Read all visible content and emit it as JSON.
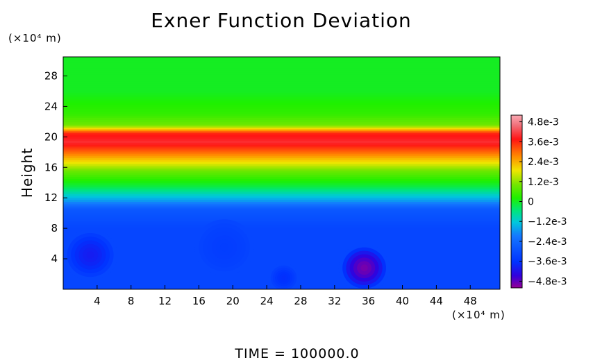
{
  "chart_data": {
    "type": "heatmap",
    "title": "Exner Function Deviation",
    "xlabel": "",
    "ylabel": "Height",
    "x_unit": "(×10⁴ m)",
    "y_unit": "(×10⁴ m)",
    "xlim": [
      0,
      51.5
    ],
    "ylim": [
      0,
      30.5
    ],
    "xticks": [
      4,
      8,
      12,
      16,
      20,
      24,
      28,
      32,
      36,
      40,
      44,
      48
    ],
    "yticks": [
      4,
      8,
      12,
      16,
      20,
      24,
      28
    ],
    "colorbar": {
      "min": -0.0052,
      "max": 0.0052,
      "ticks": [
        {
          "value": 0.0048,
          "label": "4.8e-3"
        },
        {
          "value": 0.0036,
          "label": "3.6e-3"
        },
        {
          "value": 0.0024,
          "label": "2.4e-3"
        },
        {
          "value": 0.0012,
          "label": "1.2e-3"
        },
        {
          "value": 0,
          "label": "0"
        },
        {
          "value": -0.0012,
          "label": "−1.2e-3"
        },
        {
          "value": -0.0024,
          "label": "−2.4e-3"
        },
        {
          "value": -0.0036,
          "label": "−3.6e-3"
        },
        {
          "value": -0.0048,
          "label": "−4.8e-3"
        }
      ]
    },
    "vertical_profile": [
      {
        "height": 0,
        "value": -0.0032
      },
      {
        "height": 8,
        "value": -0.0032
      },
      {
        "height": 10.5,
        "value": -0.0028
      },
      {
        "height": 12,
        "value": -0.0014
      },
      {
        "height": 13.5,
        "value": -0.0002
      },
      {
        "height": 15.5,
        "value": 0.0009
      },
      {
        "height": 17.5,
        "value": 0.0026
      },
      {
        "height": 19.3,
        "value": 0.004
      },
      {
        "height": 20.5,
        "value": 0.0036
      },
      {
        "height": 21.5,
        "value": 0.001
      },
      {
        "height": 23,
        "value": 0.0004
      },
      {
        "height": 24.5,
        "value": 0.0002
      },
      {
        "height": 26,
        "value": 0.0
      },
      {
        "height": 30.5,
        "value": 0.0
      }
    ],
    "anomalies": [
      {
        "x": 35.5,
        "y": 2.8,
        "radius": 3.0,
        "value": -0.005
      },
      {
        "x": 3.2,
        "y": 4.5,
        "radius": 3.2,
        "value": -0.004
      },
      {
        "x": 26,
        "y": 1.5,
        "radius": 1.8,
        "value": -0.0037
      },
      {
        "x": 19,
        "y": 5.5,
        "radius": 3.5,
        "value": -0.0034
      }
    ]
  },
  "footer": {
    "time_label": "TIME = 100000.0"
  }
}
